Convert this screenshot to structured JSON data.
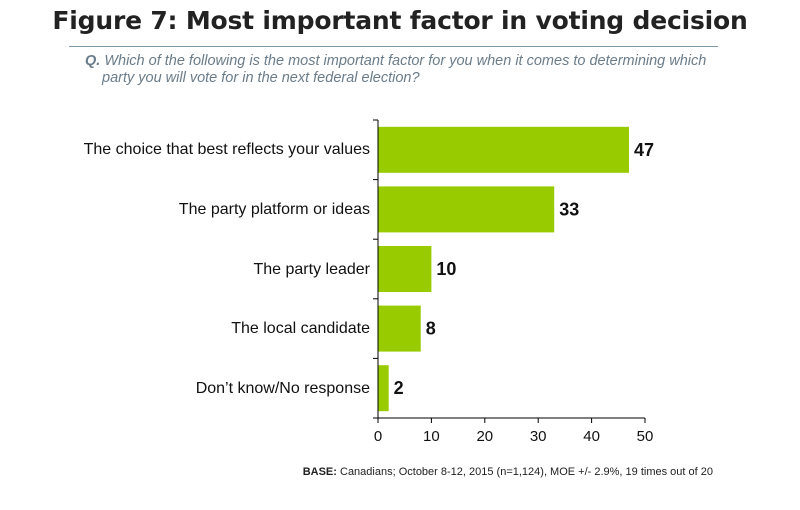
{
  "title": "Figure 7: Most important factor in voting decision",
  "question": {
    "label": "Q.",
    "text": "Which of the following is the most important factor for you when it comes to determining which party you will vote for in the next federal election?"
  },
  "base_note": {
    "label": "BASE:",
    "text": "Canadians; October 8-12, 2015 (n=1,124), MOE +/- 2.9%, 19 times out of 20"
  },
  "colors": {
    "bar": "#99cc00",
    "axis": "#000000",
    "rule": "#7f96a6"
  },
  "chart_data": {
    "type": "bar",
    "orientation": "horizontal",
    "title": "Figure 7: Most important factor in voting decision",
    "categories": [
      "The choice that best reflects your values",
      "The party platform or ideas",
      "The party leader",
      "The local candidate",
      "Don’t know/No response"
    ],
    "values": [
      47,
      33,
      10,
      8,
      2
    ],
    "xlim": [
      0,
      50
    ],
    "xticks": [
      0,
      10,
      20,
      30,
      40,
      50
    ],
    "xlabel": "",
    "ylabel": "",
    "grid": false,
    "legend": "none"
  }
}
